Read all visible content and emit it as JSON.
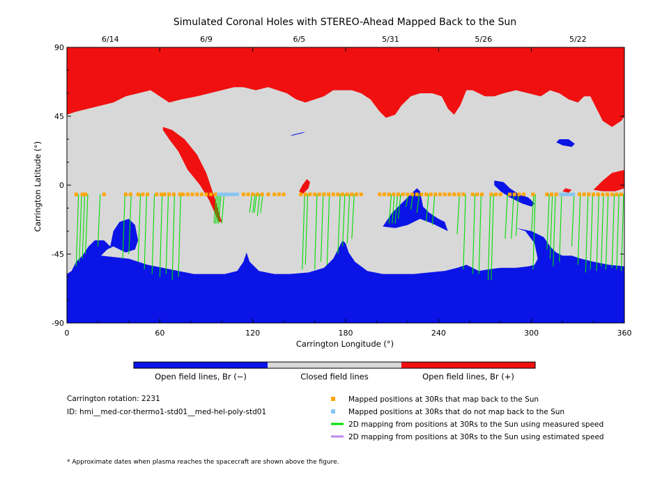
{
  "chart_data": {
    "type": "map",
    "title": "Simulated Coronal Holes with STEREO-Ahead Mapped Back to the Sun",
    "xlabel": "Carrington Longitude (°)",
    "ylabel": "Carrington Latitude (°)",
    "xlim": [
      0,
      360
    ],
    "ylim": [
      -90,
      90
    ],
    "x_ticks": [
      0,
      60,
      120,
      180,
      240,
      300,
      360
    ],
    "y_ticks": [
      {
        "value": 90,
        "label": "90"
      },
      {
        "value": 45,
        "label": "45"
      },
      {
        "value": 0,
        "label": "0"
      },
      {
        "value": -45,
        "label": "-45"
      },
      {
        "value": -90,
        "label": "-90"
      }
    ],
    "top_dates": [
      {
        "lon": 28,
        "label": "6/14"
      },
      {
        "lon": 90,
        "label": "6/9"
      },
      {
        "lon": 150,
        "label": "6/5"
      },
      {
        "lon": 209,
        "label": "5/31"
      },
      {
        "lon": 269,
        "label": "5/26"
      },
      {
        "lon": 330,
        "label": "5/22"
      }
    ],
    "colors": {
      "open_negative": "#0a14e6",
      "closed": "#d8d8d8",
      "open_positive": "#f01010",
      "mapped_back": "#ffa500",
      "not_mapped": "#88c6f2",
      "measured_speed": "#00dd00",
      "estimated_speed": "#bb88ee"
    },
    "colorbar": [
      {
        "label": "Open field lines, Br (−)"
      },
      {
        "label": "Closed field lines"
      },
      {
        "label": "Open field lines, Br (+)"
      }
    ],
    "spacecraft_latitude": -6,
    "mapped_points_lon": [
      6,
      10,
      12,
      24,
      38,
      41,
      46,
      49,
      52,
      58,
      61,
      63,
      66,
      69,
      73,
      75,
      78,
      81,
      84,
      87,
      90,
      93,
      96,
      114,
      117,
      120,
      123,
      126,
      130,
      134,
      137,
      140,
      151,
      154,
      157,
      160,
      163,
      166,
      169,
      172,
      175,
      178,
      181,
      184,
      187,
      190,
      202,
      205,
      208,
      211,
      214,
      217,
      220,
      223,
      226,
      229,
      232,
      235,
      238,
      241,
      244,
      247,
      250,
      253,
      256,
      262,
      265,
      268,
      274,
      277,
      280,
      286,
      289,
      292,
      295,
      301,
      310,
      313,
      316,
      331,
      334,
      337,
      340,
      343,
      346,
      349,
      352,
      355,
      358
    ],
    "unmapped_points_lon": [
      98,
      100,
      102,
      104,
      106,
      108,
      110,
      319,
      321,
      323,
      325,
      327
    ],
    "field_lines_measured": [
      [
        6,
        -53
      ],
      [
        8,
        -50
      ],
      [
        10,
        -48
      ],
      [
        12,
        -45
      ],
      [
        20,
        -40
      ],
      [
        36,
        -48
      ],
      [
        40,
        -45
      ],
      [
        46,
        -50
      ],
      [
        50,
        -55
      ],
      [
        55,
        -58
      ],
      [
        60,
        -60
      ],
      [
        64,
        -58
      ],
      [
        68,
        -62
      ],
      [
        72,
        -60
      ],
      [
        95,
        -25
      ],
      [
        96,
        -25
      ],
      [
        97,
        -25
      ],
      [
        98,
        -25
      ],
      [
        100,
        -25
      ],
      [
        118,
        -18
      ],
      [
        120,
        -18
      ],
      [
        121,
        -18
      ],
      [
        123,
        -20
      ],
      [
        125,
        -18
      ],
      [
        152,
        -55
      ],
      [
        154,
        -52
      ],
      [
        160,
        -55
      ],
      [
        164,
        -50
      ],
      [
        168,
        -52
      ],
      [
        175,
        -45
      ],
      [
        178,
        -40
      ],
      [
        181,
        -38
      ],
      [
        184,
        -35
      ],
      [
        208,
        -25
      ],
      [
        210,
        -25
      ],
      [
        212,
        -25
      ],
      [
        214,
        -22
      ],
      [
        219,
        -14
      ],
      [
        222,
        -16
      ],
      [
        226,
        -18
      ],
      [
        232,
        -24
      ],
      [
        236,
        -26
      ],
      [
        252,
        -32
      ],
      [
        256,
        -55
      ],
      [
        262,
        -58
      ],
      [
        266,
        -58
      ],
      [
        272,
        -62
      ],
      [
        274,
        -62
      ],
      [
        283,
        -35
      ],
      [
        287,
        -35
      ],
      [
        290,
        -33
      ],
      [
        300,
        -30
      ],
      [
        301,
        -55
      ],
      [
        310,
        -42
      ],
      [
        312,
        -48
      ],
      [
        314,
        -53
      ],
      [
        318,
        -50
      ],
      [
        326,
        -40
      ],
      [
        330,
        -52
      ],
      [
        335,
        -57
      ],
      [
        338,
        -55
      ],
      [
        342,
        -56
      ],
      [
        345,
        -53
      ],
      [
        348,
        -55
      ],
      [
        352,
        -54
      ],
      [
        355,
        -55
      ],
      [
        358,
        -56
      ]
    ],
    "field_lines_estimated": [],
    "coronal_holes_negative": [
      {
        "name": "south-polar-hole",
        "points": [
          [
            0,
            -90
          ],
          [
            0,
            -58
          ],
          [
            3,
            -56
          ],
          [
            6,
            -50
          ],
          [
            10,
            -46
          ],
          [
            14,
            -40
          ],
          [
            18,
            -36
          ],
          [
            24,
            -36
          ],
          [
            28,
            -40
          ],
          [
            30,
            -30
          ],
          [
            34,
            -24
          ],
          [
            40,
            -22
          ],
          [
            44,
            -26
          ],
          [
            46,
            -36
          ],
          [
            44,
            -42
          ],
          [
            38,
            -44
          ],
          [
            30,
            -40
          ],
          [
            26,
            -42
          ],
          [
            22,
            -46
          ],
          [
            40,
            -48
          ],
          [
            52,
            -52
          ],
          [
            62,
            -54
          ],
          [
            72,
            -56
          ],
          [
            82,
            -58
          ],
          [
            92,
            -58
          ],
          [
            102,
            -58
          ],
          [
            110,
            -56
          ],
          [
            114,
            -50
          ],
          [
            116,
            -44
          ],
          [
            118,
            -50
          ],
          [
            124,
            -56
          ],
          [
            134,
            -58
          ],
          [
            144,
            -58
          ],
          [
            156,
            -57
          ],
          [
            166,
            -54
          ],
          [
            172,
            -48
          ],
          [
            176,
            -40
          ],
          [
            178,
            -36
          ],
          [
            180,
            -38
          ],
          [
            182,
            -44
          ],
          [
            186,
            -50
          ],
          [
            194,
            -56
          ],
          [
            204,
            -58
          ],
          [
            214,
            -58
          ],
          [
            224,
            -58
          ],
          [
            234,
            -57
          ],
          [
            244,
            -56
          ],
          [
            252,
            -54
          ],
          [
            258,
            -52
          ],
          [
            262,
            -54
          ],
          [
            266,
            -56
          ],
          [
            272,
            -55
          ],
          [
            280,
            -54
          ],
          [
            290,
            -54
          ],
          [
            298,
            -53
          ],
          [
            302,
            -52
          ],
          [
            304,
            -48
          ],
          [
            302,
            -38
          ],
          [
            296,
            -30
          ],
          [
            290,
            -28
          ],
          [
            300,
            -30
          ],
          [
            308,
            -34
          ],
          [
            312,
            -40
          ],
          [
            316,
            -44
          ],
          [
            320,
            -46
          ],
          [
            326,
            -46
          ],
          [
            332,
            -48
          ],
          [
            340,
            -50
          ],
          [
            350,
            -52
          ],
          [
            360,
            -53
          ],
          [
            360,
            -90
          ]
        ]
      },
      {
        "name": "hole-205-lon",
        "points": [
          [
            204,
            -27
          ],
          [
            210,
            -18
          ],
          [
            216,
            -12
          ],
          [
            222,
            -6
          ],
          [
            226,
            -2
          ],
          [
            228,
            -4
          ],
          [
            230,
            -14
          ],
          [
            234,
            -18
          ],
          [
            240,
            -22
          ],
          [
            244,
            -24
          ],
          [
            246,
            -30
          ],
          [
            242,
            -28
          ],
          [
            236,
            -25
          ],
          [
            228,
            -22
          ],
          [
            220,
            -26
          ],
          [
            212,
            -28
          ]
        ]
      },
      {
        "name": "hole-285-lon",
        "points": [
          [
            276,
            0
          ],
          [
            280,
            -4
          ],
          [
            286,
            -8
          ],
          [
            294,
            -12
          ],
          [
            300,
            -14
          ],
          [
            302,
            -12
          ],
          [
            298,
            -8
          ],
          [
            292,
            -6
          ],
          [
            286,
            -2
          ],
          [
            282,
            2
          ],
          [
            276,
            3
          ]
        ]
      },
      {
        "name": "hole-328-lon",
        "points": [
          [
            316,
            28
          ],
          [
            320,
            26
          ],
          [
            326,
            25
          ],
          [
            328,
            27
          ],
          [
            324,
            30
          ],
          [
            318,
            30
          ]
        ]
      },
      {
        "name": "hole-146-lon",
        "points": [
          [
            144,
            32
          ],
          [
            146,
            33
          ],
          [
            150,
            34
          ],
          [
            154,
            35
          ],
          [
            152,
            34
          ],
          [
            148,
            33
          ]
        ]
      }
    ],
    "coronal_holes_positive": [
      {
        "name": "north-polar-hole",
        "points": [
          [
            0,
            90
          ],
          [
            360,
            90
          ],
          [
            360,
            45
          ],
          [
            358,
            42
          ],
          [
            352,
            38
          ],
          [
            346,
            42
          ],
          [
            342,
            50
          ],
          [
            338,
            58
          ],
          [
            334,
            58
          ],
          [
            330,
            54
          ],
          [
            324,
            56
          ],
          [
            318,
            60
          ],
          [
            312,
            62
          ],
          [
            306,
            58
          ],
          [
            298,
            60
          ],
          [
            290,
            62
          ],
          [
            282,
            60
          ],
          [
            276,
            58
          ],
          [
            270,
            58
          ],
          [
            262,
            62
          ],
          [
            258,
            62
          ],
          [
            254,
            52
          ],
          [
            250,
            46
          ],
          [
            246,
            50
          ],
          [
            242,
            58
          ],
          [
            236,
            60
          ],
          [
            228,
            60
          ],
          [
            222,
            58
          ],
          [
            216,
            52
          ],
          [
            212,
            46
          ],
          [
            206,
            44
          ],
          [
            202,
            48
          ],
          [
            196,
            56
          ],
          [
            190,
            60
          ],
          [
            184,
            62
          ],
          [
            178,
            62
          ],
          [
            172,
            62
          ],
          [
            166,
            58
          ],
          [
            160,
            56
          ],
          [
            154,
            54
          ],
          [
            148,
            56
          ],
          [
            142,
            60
          ],
          [
            136,
            62
          ],
          [
            130,
            64
          ],
          [
            122,
            62
          ],
          [
            114,
            64
          ],
          [
            108,
            64
          ],
          [
            100,
            62
          ],
          [
            92,
            60
          ],
          [
            84,
            58
          ],
          [
            74,
            56
          ],
          [
            66,
            54
          ],
          [
            60,
            58
          ],
          [
            54,
            62
          ],
          [
            46,
            60
          ],
          [
            38,
            58
          ],
          [
            30,
            54
          ],
          [
            22,
            52
          ],
          [
            14,
            50
          ],
          [
            6,
            48
          ],
          [
            0,
            46
          ]
        ]
      },
      {
        "name": "streak-80-lon",
        "points": [
          [
            62,
            38
          ],
          [
            68,
            36
          ],
          [
            76,
            30
          ],
          [
            84,
            20
          ],
          [
            90,
            8
          ],
          [
            96,
            -10
          ],
          [
            100,
            -24
          ],
          [
            98,
            -24
          ],
          [
            92,
            -10
          ],
          [
            86,
            0
          ],
          [
            78,
            10
          ],
          [
            72,
            22
          ],
          [
            66,
            30
          ],
          [
            62,
            36
          ]
        ]
      },
      {
        "name": "patch-155-lon",
        "points": [
          [
            150,
            -4
          ],
          [
            152,
            0
          ],
          [
            155,
            4
          ],
          [
            157,
            2
          ],
          [
            156,
            -2
          ],
          [
            152,
            -6
          ]
        ]
      },
      {
        "name": "patch-350-lon",
        "points": [
          [
            340,
            -3
          ],
          [
            346,
            3
          ],
          [
            352,
            8
          ],
          [
            360,
            10
          ],
          [
            360,
            -2
          ],
          [
            354,
            -4
          ],
          [
            346,
            -4
          ]
        ]
      },
      {
        "name": "patch-322-lon",
        "points": [
          [
            320,
            -4
          ],
          [
            322,
            -2
          ],
          [
            326,
            -3
          ],
          [
            324,
            -5
          ]
        ]
      }
    ]
  },
  "info": {
    "rotation": "Carrington rotation: 2231",
    "id": "ID: hmi__med-cor-thermo1-std01__med-hel-poly-std01"
  },
  "legend": [
    {
      "key": "mapped_back",
      "type": "square",
      "label": "Mapped positions at 30Rs that map back to the Sun"
    },
    {
      "key": "not_mapped",
      "type": "square",
      "label": "Mapped positions at 30Rs that do not map back to the Sun"
    },
    {
      "key": "measured_speed",
      "type": "line",
      "label": "2D mapping from positions at 30Rs to the Sun using measured speed"
    },
    {
      "key": "estimated_speed",
      "type": "line",
      "label": "2D mapping from positions at 30Rs to the Sun using estimated speed"
    }
  ],
  "footnote": "* Approximate dates when plasma reaches the spacecraft are shown above the figure."
}
